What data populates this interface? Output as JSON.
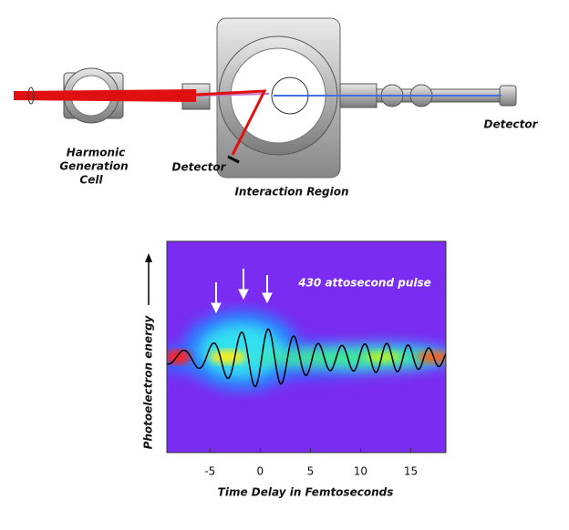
{
  "diagram": {
    "labels": {
      "harmonic_cell": [
        "Harmonic",
        "Generation",
        "Cell"
      ],
      "detector_left": "Detector",
      "interaction_region": "Interaction Region",
      "detector_right": "Detector"
    }
  },
  "chart_data": {
    "type": "heatmap",
    "annotation": "430 attosecond pulse",
    "x_label": "Time Delay in Femtoseconds",
    "y_label": "Photoelectron energy",
    "xlim": [
      -9.3,
      18.5
    ],
    "xticks": [
      -5,
      0,
      5,
      10,
      15
    ]
  }
}
